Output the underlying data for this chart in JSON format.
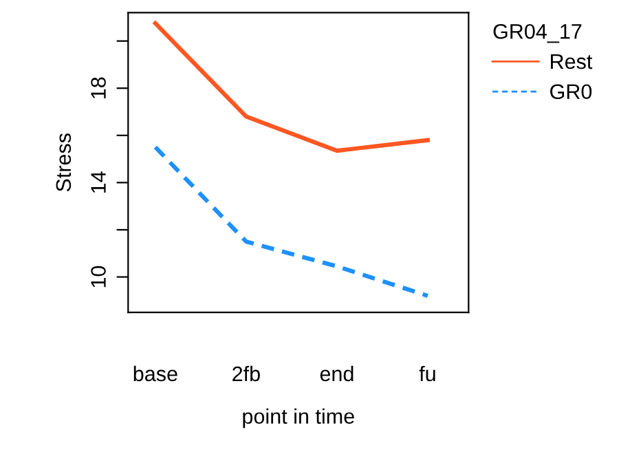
{
  "chart_data": {
    "type": "line",
    "xlabel": "point in time",
    "ylabel": "Stress",
    "legend_title": "GR04_17",
    "categories": [
      "base",
      "2fb",
      "end",
      "fu"
    ],
    "series": [
      {
        "name": "Rest",
        "color": "#ff5722",
        "line_style": "solid",
        "values": [
          20.75,
          16.8,
          15.35,
          15.8
        ]
      },
      {
        "name": "GR0",
        "color": "#1e90ff",
        "line_style": "dashed",
        "values": [
          15.5,
          11.5,
          10.45,
          9.2
        ]
      }
    ],
    "ylim": [
      8.5,
      21.2
    ],
    "yticks": [
      10,
      {
        "value": 12,
        "label": null
      },
      14,
      {
        "value": 16,
        "label": null
      },
      18,
      {
        "value": 20,
        "label": null
      }
    ],
    "grid": false,
    "legend": "top right",
    "marker": "none"
  }
}
